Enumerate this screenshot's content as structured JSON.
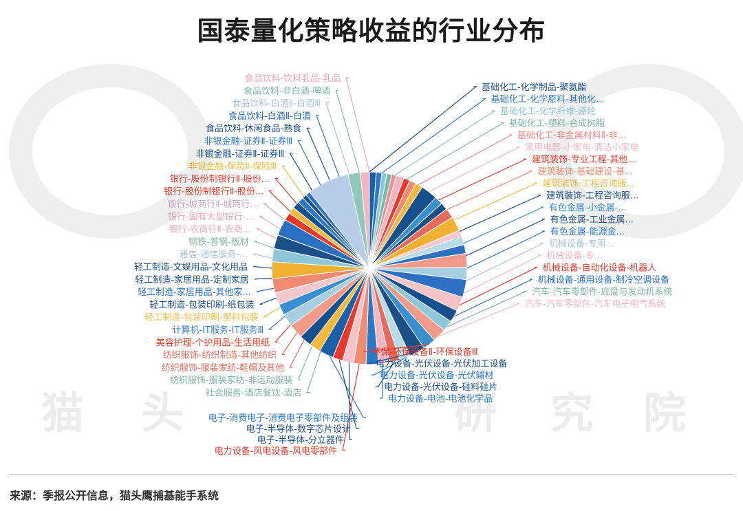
{
  "title": "国泰量化策略收益的行业分布",
  "source": "来源：季报公开信息，猫头鹰捕基能手系统",
  "watermark": {
    "chars": [
      "猫",
      "头",
      "研",
      "究",
      "院"
    ]
  },
  "chart_data": {
    "type": "pie",
    "title": "国泰量化策略收益的行业分布",
    "slices": [
      {
        "label": "基础化工-化学制品-聚氨酯",
        "value": 1.2,
        "color": "#1b5fa8"
      },
      {
        "label": "基础化工-化学原料-其他化...",
        "value": 1.0,
        "color": "#2a78c8"
      },
      {
        "label": "基础化工-化学纤维-涤纶",
        "value": 0.9,
        "color": "#8fc7d8"
      },
      {
        "label": "基础化工-塑料-合成树脂",
        "value": 0.9,
        "color": "#7bb8a8"
      },
      {
        "label": "基础化工-非金属材料Ⅱ-非...",
        "value": 0.8,
        "color": "#e88f8f"
      },
      {
        "label": "家用电器-小家电-清洁小家电",
        "value": 1.4,
        "color": "#f3b5c0"
      },
      {
        "label": "建筑装饰-专业工程-其他...",
        "value": 1.1,
        "color": "#e83a2a"
      },
      {
        "label": "建筑装饰-基础建设-基...",
        "value": 1.2,
        "color": "#f08a70"
      },
      {
        "label": "建筑装饰-工程咨询服...",
        "value": 1.3,
        "color": "#f6b93c"
      },
      {
        "label": "建筑装饰-工程咨询服...",
        "value": 3.0,
        "color": "#17508f"
      },
      {
        "label": "有色金属-小金属-...",
        "value": 1.5,
        "color": "#3a8fd0"
      },
      {
        "label": "有色金属-工业金属...",
        "value": 1.3,
        "color": "#1b4f87"
      },
      {
        "label": "有色金属-能源金...",
        "value": 1.8,
        "color": "#e86a5a"
      },
      {
        "label": "机械设备-专用...",
        "value": 2.6,
        "color": "#f0b030"
      },
      {
        "label": "机械设备-专...",
        "value": 1.2,
        "color": "#f5c8cf"
      },
      {
        "label": "机械设备-自动化设备-机器人",
        "value": 1.5,
        "color": "#b7dbe8"
      },
      {
        "label": "机械设备-通用设备-制冷空调设备",
        "value": 1.6,
        "color": "#2a70c0"
      },
      {
        "label": "汽车-汽车零部件-底盘与发动机系统",
        "value": 2.5,
        "color": "#f29a8a"
      },
      {
        "label": "汽车-汽车零部件-汽车电子电气系统",
        "value": 2.2,
        "color": "#a8cfe0"
      },
      {
        "label": "环保-环保设备Ⅱ-环保设备Ⅲ",
        "value": 3.2,
        "color": "#2d6fc4"
      },
      {
        "label": "电力设备-光伏设备-光伏加工设备",
        "value": 2.6,
        "color": "#f6c4c8"
      },
      {
        "label": "电力设备-光伏设备-光伏辅材",
        "value": 2.2,
        "color": "#17508f"
      },
      {
        "label": "电力设备-光伏设备-硅料硅片",
        "value": 2.0,
        "color": "#8fc7d8"
      },
      {
        "label": "电力设备-电池-电池化学品",
        "value": 2.4,
        "color": "#f39b8b"
      },
      {
        "label": "电子-消费电子-消费电子零部件及组装",
        "value": 2.3,
        "color": "#3a8fd0"
      },
      {
        "label": "电子-半导体-数字芯片设计",
        "value": 2.8,
        "color": "#1b4f87"
      },
      {
        "label": "电子-半导体-分立器件",
        "value": 2.0,
        "color": "#b7dbe8"
      },
      {
        "label": "电力设备-风电设备-风电零部件",
        "value": 1.8,
        "color": "#e86a5a"
      },
      {
        "label": "社会服务-酒店餐饮-酒店",
        "value": 2.0,
        "color": "#f3b5c0"
      },
      {
        "label": "纺织服饰-服装家纺-非运动服装",
        "value": 2.2,
        "color": "#2a78c8"
      },
      {
        "label": "纺织服饰-服装家纺-鞋帽及其他",
        "value": 2.2,
        "color": "#f08a70"
      },
      {
        "label": "纺织服饰-纺织制造-其他纺织",
        "value": 2.0,
        "color": "#f6c4c8"
      },
      {
        "label": "美容护理-个护用品-生活用纸",
        "value": 1.8,
        "color": "#e83a2a"
      },
      {
        "label": "计算机-IT服务-IT服务Ⅲ",
        "value": 2.6,
        "color": "#1b5fa8"
      },
      {
        "label": "轻工制造-包装印刷-塑料包装",
        "value": 2.0,
        "color": "#f6b93c"
      },
      {
        "label": "轻工制造-包装印刷-纸包装",
        "value": 2.2,
        "color": "#17508f"
      },
      {
        "label": "轻工制造-家居用品-其他家...",
        "value": 2.6,
        "color": "#f29a8a"
      },
      {
        "label": "轻工制造-家居用品-定制家居",
        "value": 2.3,
        "color": "#a8cfe0"
      },
      {
        "label": "轻工制造-文娱用品-文化用品",
        "value": 2.0,
        "color": "#3a8fd0"
      },
      {
        "label": "通信-通信服务-...",
        "value": 2.2,
        "color": "#f5c8cf"
      },
      {
        "label": "钢铁-普钢-板材",
        "value": 2.6,
        "color": "#f08a70"
      },
      {
        "label": "银行-农商行Ⅱ-农商...",
        "value": 3.0,
        "color": "#f0b030"
      },
      {
        "label": "银行-国有大型银行-...",
        "value": 2.4,
        "color": "#8fc7d8"
      },
      {
        "label": "银行-城商行Ⅱ-城商...",
        "value": 2.5,
        "color": "#1b4f87"
      },
      {
        "label": "银行-股份制银行Ⅱ-股份...",
        "value": 3.0,
        "color": "#2a70c0"
      },
      {
        "label": "银行-股份制银行Ⅱ-股份...",
        "value": 1.4,
        "color": "#e83a2a"
      },
      {
        "label": "非银金融-保险Ⅱ-保险Ⅲ",
        "value": 1.2,
        "color": "#f6b93c"
      },
      {
        "label": "非银金融-证券Ⅱ-证券Ⅲ",
        "value": 1.3,
        "color": "#17508f"
      },
      {
        "label": "非银金融-证券Ⅱ-证券Ⅲ",
        "value": 1.1,
        "color": "#2a78c8"
      },
      {
        "label": "食品饮料-休闲食品-熟食",
        "value": 0.8,
        "color": "#1b4f87"
      },
      {
        "label": "食品饮料-白酒Ⅱ-白酒",
        "value": 0.8,
        "color": "#2d6fc4"
      },
      {
        "label": "食品饮料-白酒Ⅱ-白酒Ⅲ",
        "value": 7.5,
        "color": "#b8cde8"
      },
      {
        "label": "食品饮料-非白酒-啤酒",
        "value": 2.2,
        "color": "#8fc7b8"
      },
      {
        "label": "食品饮料-饮料乳品-乳品",
        "value": 1.6,
        "color": "#f3b5c0"
      }
    ],
    "legend": "none"
  },
  "labels": [
    {
      "text": "食品饮料-饮料乳品-乳品",
      "color": "#f0a8b4"
    },
    {
      "text": "食品饮料-非白酒-啤酒",
      "color": "#7fb8a8"
    },
    {
      "text": "食品饮料-白酒Ⅱ-白酒Ⅲ",
      "color": "#a8c4e4"
    },
    {
      "text": "食品饮料-白酒Ⅱ-白酒",
      "color": "#2d6fc4"
    },
    {
      "text": "食品饮料-休闲食品-熟食",
      "color": "#1b4f87"
    },
    {
      "text": "非银金融-证券Ⅱ-证券Ⅲ",
      "color": "#2a78c8"
    },
    {
      "text": "非银金融-证券Ⅱ-证券Ⅲ",
      "color": "#17508f"
    },
    {
      "text": "非银金融-保险Ⅱ-保险Ⅲ",
      "color": "#f6b93c"
    },
    {
      "text": "银行-股份制银行Ⅱ-股份...",
      "color": "#e83a2a"
    },
    {
      "text": "银行-股份制银行Ⅱ-股份...",
      "color": "#e83a2a"
    },
    {
      "text": "银行-城商行Ⅱ-城商行...",
      "color": "#c7a8c8"
    },
    {
      "text": "银行-国有大型银行-...",
      "color": "#f0a8b4"
    },
    {
      "text": "银行-农商行Ⅱ-农商...",
      "color": "#f0a8b4"
    },
    {
      "text": "钢铁-普钢-板材",
      "color": "#7fb8a8"
    },
    {
      "text": "通信-通信服务-...",
      "color": "#a8c4e4"
    },
    {
      "text": "轻工制造-文娱用品-文化用品",
      "color": "#1b4f87"
    },
    {
      "text": "轻工制造-家居用品-定制家居",
      "color": "#1b4f87"
    },
    {
      "text": "轻工制造-家居用品-其他家...",
      "color": "#2d6fc4"
    },
    {
      "text": "轻工制造-包装印刷-纸包装",
      "color": "#17508f"
    },
    {
      "text": "轻工制造-包装印刷-塑料包装",
      "color": "#f6b93c"
    },
    {
      "text": "计算机-IT服务-IT服务Ⅲ",
      "color": "#3a7fd0"
    },
    {
      "text": "美容护理-个护用品-生活用纸",
      "color": "#e83a2a"
    },
    {
      "text": "纺织服饰-纺织制造-其他纺织",
      "color": "#e86a5a"
    },
    {
      "text": "纺织服饰-服装家纺-鞋帽及其他",
      "color": "#e86a5a"
    },
    {
      "text": "纺织服饰-服装家纺-非运动服装",
      "color": "#7fb8a8"
    },
    {
      "text": "社会服务-酒店餐饮-酒店",
      "color": "#7fb8a8"
    },
    {
      "text": "电子-消费电子-消费电子零部件及组装",
      "color": "#2a78c8"
    },
    {
      "text": "电子-半导体-数字芯片设计",
      "color": "#1b4f87"
    },
    {
      "text": "电子-半导体-分立器件",
      "color": "#17508f"
    },
    {
      "text": "电力设备-风电设备-风电零部件",
      "color": "#e83a2a"
    },
    {
      "text": "基础化工-化学制品-聚氨酯",
      "color": "#1b4f87"
    },
    {
      "text": "基础化工-化学原料-其他化...",
      "color": "#2a78c8"
    },
    {
      "text": "基础化工-化学纤维-涤纶",
      "color": "#8fc7d8"
    },
    {
      "text": "基础化工-塑料-合成树脂",
      "color": "#7fb8a8"
    },
    {
      "text": "基础化工-非金属材料Ⅱ-非...",
      "color": "#f08a8a"
    },
    {
      "text": "家用电器-小家电-清洁小家电",
      "color": "#f3b5c0"
    },
    {
      "text": "建筑装饰-专业工程-其他...",
      "color": "#e83a2a"
    },
    {
      "text": "建筑装饰-基础建设-基...",
      "color": "#f08a70"
    },
    {
      "text": "建筑装饰-工程咨询服...",
      "color": "#f6b93c"
    },
    {
      "text": "建筑装饰-工程咨询服...",
      "color": "#17508f"
    },
    {
      "text": "有色金属-小金属-...",
      "color": "#3a8fd0"
    },
    {
      "text": "有色金属-工业金属...",
      "color": "#1b4f87"
    },
    {
      "text": "有色金属-能源金...",
      "color": "#2a78c8"
    },
    {
      "text": "机械设备-专用...",
      "color": "#a8c4e4"
    },
    {
      "text": "机械设备-专...",
      "color": "#f3b5c0"
    },
    {
      "text": "机械设备-自动化设备-机器人",
      "color": "#e83a2a"
    },
    {
      "text": "机械设备-通用设备-制冷空调设备",
      "color": "#2a70c0"
    },
    {
      "text": "汽车-汽车零部件-底盘与发动机系统",
      "color": "#7fb8a8"
    },
    {
      "text": "汽车-汽车零部件-汽车电子电气系统",
      "color": "#f3b5c0"
    },
    {
      "text": "环保-环保设备Ⅱ-环保设备Ⅲ",
      "color": "#e83a2a"
    },
    {
      "text": "电力设备-光伏设备-光伏加工设备",
      "color": "#1b4f87"
    },
    {
      "text": "电力设备-光伏设备-光伏辅材",
      "color": "#2a78c8"
    },
    {
      "text": "电力设备-光伏设备-硅料硅片",
      "color": "#17508f"
    },
    {
      "text": "电力设备-电池-电池化学品",
      "color": "#2a78c8"
    }
  ]
}
